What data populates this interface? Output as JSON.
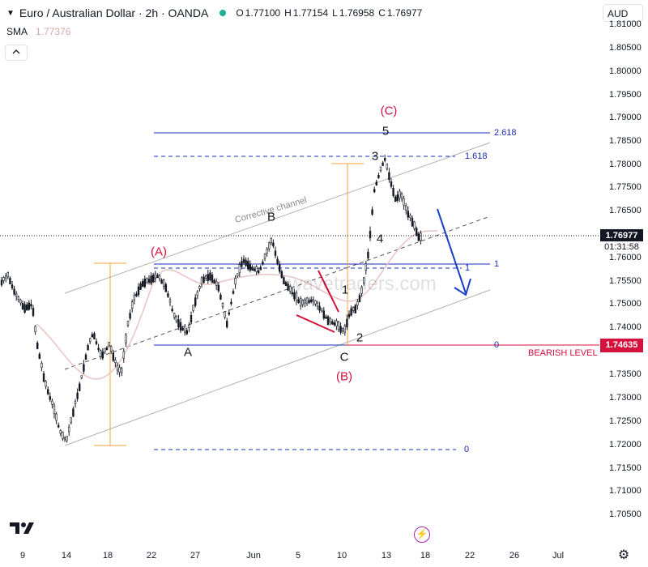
{
  "header": {
    "symbol": "Euro / Australian Dollar · 2h · OANDA",
    "ohlc": [
      {
        "k": "O",
        "v": "1.77100"
      },
      {
        "k": "H",
        "v": "1.77154"
      },
      {
        "k": "L",
        "v": "1.76958"
      },
      {
        "k": "C",
        "v": "1.76977"
      }
    ],
    "sma_label": "SMA",
    "sma_value": "1.77376",
    "currency": "AUD",
    "collapse_icon": "chevron-up"
  },
  "colors": {
    "fib_blue": "#1a2eb4",
    "red": "#d3123d",
    "orange": "#f2a33a",
    "channel_gray": "#b0b0b0",
    "sma_pink": "#e8c4c4",
    "last_price_bg": "#131722",
    "bearish_bg": "#d3123d",
    "arrow_blue": "#1a3fc4"
  },
  "price_scale": {
    "ticks": [
      "1.81000",
      "1.80500",
      "1.80000",
      "1.79500",
      "1.79000",
      "1.78500",
      "1.78000",
      "1.77500",
      "1.76500",
      "1.76000",
      "1.75500",
      "1.75000",
      "1.74000",
      "1.73500",
      "1.73000",
      "1.72500",
      "1.72000",
      "1.71500",
      "1.71000",
      "1.70500"
    ],
    "last_price": "1.76977",
    "countdown": "01:31:58",
    "bearish_price": "1.74635"
  },
  "time_scale": {
    "ticks": [
      "9",
      "14",
      "18",
      "22",
      "27",
      "Jun",
      "5",
      "10",
      "13",
      "18",
      "22",
      "26",
      "Jul"
    ]
  },
  "fib_labels": {
    "top_2618": "2.618",
    "top_1618": "1.618",
    "right_1": "1",
    "right_0": "0",
    "mid_1": "1",
    "bottom_0": "0"
  },
  "annotations": {
    "bearish_level": "BEARISH LEVEL",
    "corrective_channel": "Corrective channel",
    "watermark": "wavetraders.com"
  },
  "waves": {
    "A_paren": "(A)",
    "B_paren": "(B)",
    "C_paren": "(C)",
    "A": "A",
    "B": "B",
    "C": "C",
    "w1": "1",
    "w2": "2",
    "w3": "3",
    "w4": "4",
    "w5": "5"
  },
  "icons": {
    "logo": "tradingview-logo",
    "lightning": "lightning-icon",
    "settings": "gear-icon"
  }
}
